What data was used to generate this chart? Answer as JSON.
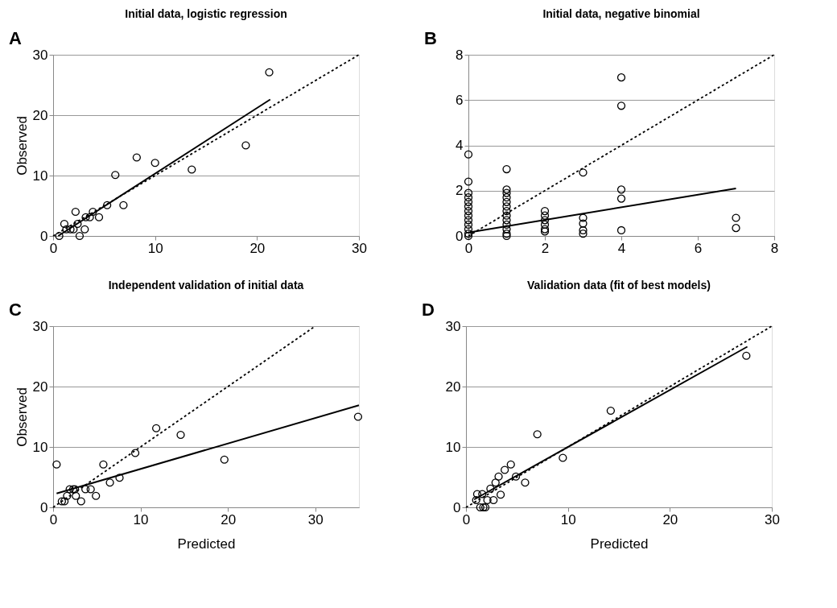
{
  "chart_data": [
    {
      "type": "scatter",
      "title": "Initial data,  logistic regression",
      "ylabel": "Observed",
      "annotations": [
        "A"
      ],
      "xlim": [
        0,
        30
      ],
      "ylim": [
        0,
        30
      ],
      "xticks": [
        0,
        10,
        20,
        30
      ],
      "yticks": [
        0,
        10,
        20,
        30
      ],
      "grid": "y",
      "marker": "circle",
      "series": [
        {
          "color": "#000000",
          "x": [
            21.2,
            18.9,
            8.2,
            10.0,
            13.6,
            6.1,
            6.9,
            5.3,
            2.2,
            3.9,
            4.5,
            3.2,
            3.6,
            1.1,
            2.4,
            3.1,
            1.3,
            1.7,
            2.0,
            0.6,
            2.6
          ],
          "values": [
            27.1,
            15.0,
            13.0,
            12.1,
            11.0,
            10.1,
            5.1,
            5.1,
            4.0,
            4.0,
            3.1,
            3.1,
            3.1,
            2.0,
            2.0,
            1.1,
            1.1,
            1.1,
            1.1,
            0,
            0
          ]
        },
        {
          "type": "line",
          "line_style": "solid",
          "marker": "none",
          "color": "#000000",
          "x": [
            0.5,
            21.3
          ],
          "values": [
            0,
            22.6
          ]
        },
        {
          "type": "line",
          "line_style": "dotted",
          "marker": "none",
          "color": "#000000",
          "x": [
            0,
            30
          ],
          "values": [
            0,
            30
          ]
        }
      ]
    },
    {
      "type": "scatter",
      "title": "Initial data,  negative binomial",
      "annotations": [
        "B"
      ],
      "xlim": [
        0,
        8
      ],
      "ylim": [
        0,
        8
      ],
      "xticks": [
        0,
        2,
        4,
        6,
        8
      ],
      "yticks": [
        0,
        2,
        4,
        6,
        8
      ],
      "grid": "y",
      "marker": "circle",
      "series": [
        {
          "color": "#000000",
          "x": [
            0,
            0,
            0,
            0,
            0,
            0,
            0,
            0,
            0,
            0,
            0,
            0,
            0,
            1,
            1,
            1,
            1,
            1,
            1,
            1,
            1,
            1,
            1,
            1,
            1,
            1,
            2,
            2,
            2,
            2,
            2,
            2,
            3,
            3,
            3,
            3,
            3,
            4,
            4,
            4,
            4,
            4,
            7,
            7
          ],
          "values": [
            3.6,
            2.4,
            1.9,
            1.7,
            1.5,
            1.3,
            1.1,
            0.9,
            0.7,
            0.5,
            0.3,
            0.1,
            0,
            2.95,
            2.05,
            1.9,
            1.7,
            1.5,
            1.3,
            1.1,
            0.9,
            0.7,
            0.5,
            0.3,
            0.1,
            0,
            1.1,
            0.9,
            0.7,
            0.5,
            0.3,
            0.2,
            2.8,
            0.8,
            0.55,
            0.25,
            0.1,
            7.0,
            5.75,
            2.05,
            1.65,
            0.25,
            0.8,
            0.35
          ]
        },
        {
          "type": "line",
          "line_style": "solid",
          "marker": "none",
          "color": "#000000",
          "x": [
            0,
            7
          ],
          "values": [
            0.15,
            2.1
          ]
        },
        {
          "type": "line",
          "line_style": "dotted",
          "marker": "none",
          "color": "#000000",
          "x": [
            0,
            8
          ],
          "values": [
            0,
            8
          ]
        }
      ]
    },
    {
      "type": "scatter",
      "title": "Independent validation of initial data",
      "xlabel": "Predicted",
      "ylabel": "Observed",
      "annotations": [
        "C"
      ],
      "xlim": [
        0,
        35
      ],
      "ylim": [
        0,
        30
      ],
      "xticks": [
        0,
        10,
        20,
        30
      ],
      "yticks": [
        0,
        10,
        20,
        30
      ],
      "grid": "y",
      "marker": "circle",
      "series": [
        {
          "color": "#000000",
          "x": [
            0.4,
            34.9,
            19.6,
            14.6,
            11.8,
            9.4,
            5.75,
            7.6,
            6.5,
            4.9,
            3.2,
            4.3,
            3.7,
            2.6,
            1.9,
            2.3,
            2.5,
            1.6,
            1.0,
            1.3
          ],
          "values": [
            7.1,
            15.0,
            7.9,
            12.0,
            13.1,
            9.0,
            7.1,
            4.9,
            4.1,
            1.9,
            1.0,
            3.0,
            3.0,
            1.9,
            3.0,
            3.0,
            3.0,
            1.9,
            1.0,
            1.0
          ]
        },
        {
          "type": "line",
          "line_style": "solid",
          "marker": "none",
          "color": "#000000",
          "x": [
            0.4,
            35
          ],
          "values": [
            2.3,
            16.9
          ]
        },
        {
          "type": "line",
          "line_style": "dotted",
          "marker": "none",
          "color": "#000000",
          "x": [
            0,
            30
          ],
          "values": [
            0,
            30
          ]
        }
      ]
    },
    {
      "type": "scatter",
      "title": "Validation data (fit of best models)",
      "xlabel": "Predicted",
      "annotations": [
        "D"
      ],
      "xlim": [
        0,
        30
      ],
      "ylim": [
        0,
        30
      ],
      "xticks": [
        0,
        10,
        20,
        30
      ],
      "yticks": [
        0,
        10,
        20,
        30
      ],
      "grid": "y",
      "marker": "circle",
      "series": [
        {
          "color": "#000000",
          "x": [
            27.5,
            14.2,
            7.0,
            9.5,
            4.4,
            3.8,
            3.2,
            4.9,
            2.9,
            5.8,
            2.4,
            3.4,
            1.1,
            1.6,
            1.0,
            2.1,
            2.7,
            1.4,
            1.7,
            1.9
          ],
          "values": [
            25.1,
            16.0,
            12.1,
            8.2,
            7.1,
            6.2,
            5.1,
            5.1,
            4.1,
            4.1,
            3.1,
            2.1,
            2.2,
            2.2,
            1.2,
            1.2,
            1.2,
            0,
            0,
            0
          ]
        },
        {
          "type": "line",
          "line_style": "solid",
          "marker": "none",
          "color": "#000000",
          "x": [
            0.8,
            27.6
          ],
          "values": [
            1.3,
            26.6
          ]
        },
        {
          "type": "line",
          "line_style": "dotted",
          "marker": "none",
          "color": "#000000",
          "x": [
            0,
            30
          ],
          "values": [
            0,
            30
          ]
        }
      ]
    }
  ]
}
